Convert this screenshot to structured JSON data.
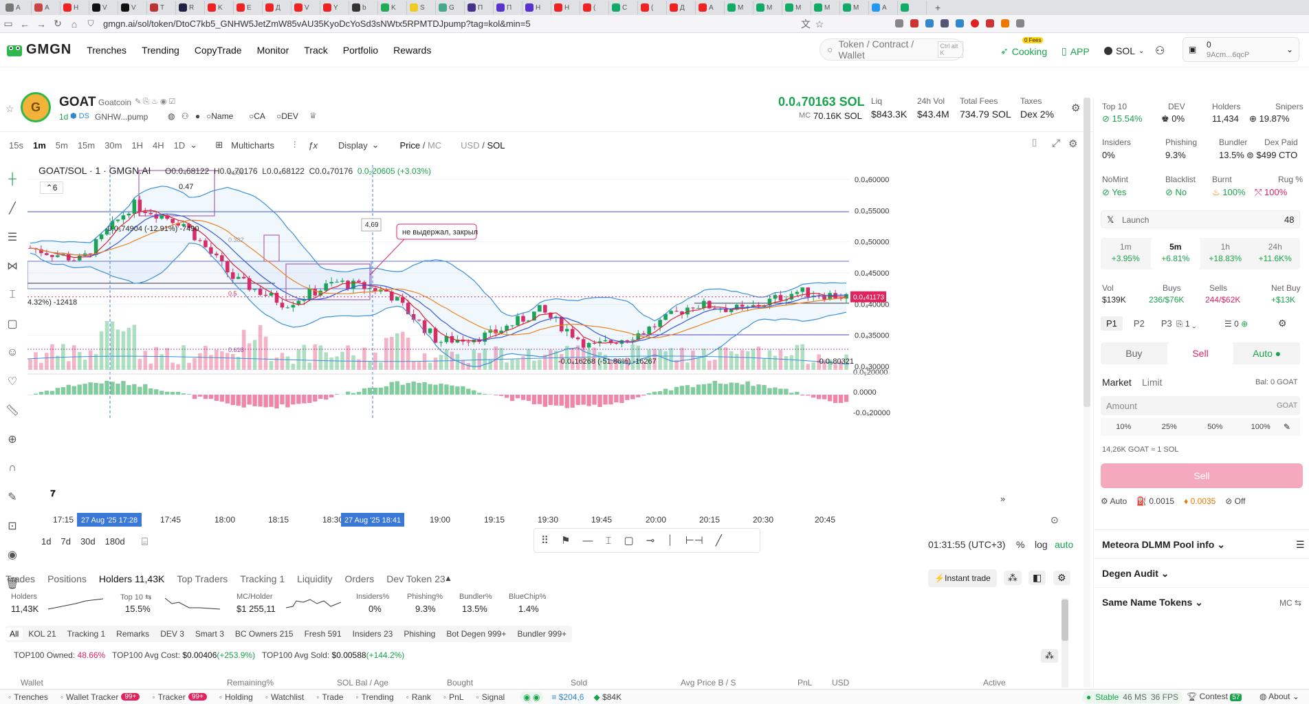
{
  "browser": {
    "tabs": [
      {
        "label": "A",
        "color": "#777"
      },
      {
        "label": "A",
        "color": "#c44"
      },
      {
        "label": "H",
        "color": "#e22"
      },
      {
        "label": "V",
        "color": "#111"
      },
      {
        "label": "V",
        "color": "#111"
      },
      {
        "label": "T",
        "color": "#b33"
      },
      {
        "label": "R",
        "color": "#224"
      },
      {
        "label": "K",
        "color": "#e22"
      },
      {
        "label": "E",
        "color": "#e22"
      },
      {
        "label": "Д",
        "color": "#e22"
      },
      {
        "label": "V",
        "color": "#e22"
      },
      {
        "label": "Y",
        "color": "#e22"
      },
      {
        "label": "b",
        "color": "#333"
      },
      {
        "label": "K",
        "color": "#2a5"
      },
      {
        "label": "S",
        "color": "#ec2"
      },
      {
        "label": "G",
        "color": "#4a8"
      },
      {
        "label": "П",
        "color": "#438"
      },
      {
        "label": "П",
        "color": "#53c"
      },
      {
        "label": "H",
        "color": "#53c"
      },
      {
        "label": "H",
        "color": "#e22"
      },
      {
        "label": "(",
        "color": "#e22"
      },
      {
        "label": "C",
        "color": "#1a6"
      },
      {
        "label": "(",
        "color": "#e22"
      },
      {
        "label": "Д",
        "color": "#e22"
      },
      {
        "label": "A",
        "color": "#e22"
      },
      {
        "label": "M",
        "color": "#1a6"
      },
      {
        "label": "M",
        "color": "#1a6"
      },
      {
        "label": "M",
        "color": "#1a6"
      },
      {
        "label": "M",
        "color": "#1a6"
      },
      {
        "label": "M",
        "color": "#1a6"
      },
      {
        "label": "A",
        "color": "#29e"
      },
      {
        "label": "",
        "color": "#1a6"
      }
    ],
    "url": "gmgn.ai/sol/token/DtoC7kb5_GNHW5JetZmW85vAU35KyoDcYoSd3sNWtx5RPMTDJpump?tag=kol&min=5"
  },
  "nav": {
    "logo": "GMGN",
    "links": [
      "Trenches",
      "Trending",
      "CopyTrade",
      "Monitor",
      "Track",
      "Portfolio",
      "Rewards"
    ],
    "search_placeholder": "Token / Contract / Wallet",
    "search_shortcut": "Ctrl alt K",
    "cooking": "Cooking",
    "cooking_badge": "0 Fees",
    "app": "APP",
    "chain": "SOL",
    "wallet_balance": "0",
    "wallet_addr": "9Acm...6qcP"
  },
  "token": {
    "symbol": "GOAT",
    "name": "Goatcoin",
    "age": "1d",
    "contract": "GNHW...pump",
    "links": [
      "Name",
      "CA",
      "DEV"
    ],
    "price": "0.0₄70163 SOL",
    "mc_label": "MC",
    "mc": "70.16K SOL",
    "liq_label": "Liq",
    "liq": "$843.3K",
    "vol_label": "24h Vol",
    "vol": "$43.4M",
    "fees_label": "Total Fees",
    "fees": "734.79 SOL",
    "taxes_label": "Taxes",
    "taxes": "Dex 2%"
  },
  "toolbar": {
    "timeframes": [
      "15s",
      "1m",
      "5m",
      "15m",
      "30m",
      "1H",
      "4H",
      "1D"
    ],
    "active_tf": "1m",
    "multicharts": "Multicharts",
    "display": "Display",
    "price_mc_a": "Price",
    "price_mc_b": "MC",
    "usd_sol_a": "USD",
    "usd_sol_b": "SOL"
  },
  "chart": {
    "title": "GOAT/SOL · 1 · GMGN.AI",
    "ohlc": {
      "o": "O0.0₄68122",
      "h": "H0.0₄70176",
      "l": "L0.0₄68122",
      "c": "C0.0₄70176",
      "chg": "0.0₂20605 (+3.03%)"
    },
    "indicator_count": "6",
    "annotations": {
      "a1": "-0.0₅74904 (-12.91%) -7490",
      "a2": "4.32%) -12418",
      "a3": "4,69",
      "a4": "не выдержал, закрыл",
      "a5": "-0.0₄16268 (-51.86%) -16267",
      "a6": "-0.0₅80321",
      "a7": "0.47",
      "a8": "0.5",
      "a9": "0.618",
      "a10": "0.236",
      "a11": "0.382"
    },
    "price_labels": [
      "0.0₄60000",
      "0.0₄55000",
      "0.0₄50000",
      "0.0₄45000",
      "0.0₄40000",
      "0.0₄35000",
      "0.0₄30000",
      "0.0₅20000",
      "0.0000",
      "-0.0₅20000"
    ],
    "current_price_label": "0.0₄41173",
    "time_labels": [
      "17:15",
      "17:45",
      "18:00",
      "18:15",
      "18:30",
      "19:00",
      "19:15",
      "19:30",
      "19:45",
      "20:00",
      "20:15",
      "20:30",
      "20:45"
    ],
    "crosshair_time_1": "27 Aug '25   17:28",
    "crosshair_time_2": "27 Aug '25   18:41",
    "ranges": [
      "1d",
      "7d",
      "30d",
      "180d"
    ],
    "clock": "01:31:55 (UTC+3)",
    "scale_pct": "%",
    "scale_log": "log",
    "scale_auto": "auto"
  },
  "chart_data": {
    "type": "candlestick",
    "title": "GOAT/SOL · 1 · GMGN.AI",
    "x": [
      "17:05",
      "17:15",
      "17:28",
      "17:45",
      "18:00",
      "18:15",
      "18:30",
      "18:41",
      "19:00",
      "19:15",
      "19:30",
      "19:45",
      "20:00",
      "20:15",
      "20:30",
      "20:45",
      "20:55"
    ],
    "close_x1e5": [
      4.9,
      4.7,
      5.6,
      5.3,
      4.4,
      4.0,
      4.35,
      4.2,
      3.4,
      3.5,
      3.9,
      3.3,
      3.55,
      4.0,
      3.9,
      4.2,
      4.12
    ],
    "ylim_x1e5": [
      2.9,
      6.1
    ]
  },
  "right": {
    "top10_label": "Top 10",
    "top10": "15.54%",
    "dev_label": "DEV",
    "dev": "0%",
    "holders_label": "Holders",
    "holders": "11,434",
    "snipers_label": "Snipers",
    "snipers": "19.87%",
    "insiders_label": "Insiders",
    "insiders": "0%",
    "phishing_label": "Phishing",
    "phishing": "9.3%",
    "bundler_label": "Bundler",
    "bundler": "13.5%",
    "dexpaid_label": "Dex Paid",
    "dexpaid": "$499 CTO",
    "nomint_label": "NoMint",
    "nomint": "Yes",
    "blacklist_label": "Blacklist",
    "blacklist": "No",
    "burnt_label": "Burnt",
    "burnt": "100%",
    "rug_label": "Rug %",
    "rug": "100%",
    "launch_label": "Launch",
    "launch": "48",
    "periods": [
      {
        "p": "1m",
        "v": "+3.95%"
      },
      {
        "p": "5m",
        "v": "+6.81%"
      },
      {
        "p": "1h",
        "v": "+18.83%"
      },
      {
        "p": "24h",
        "v": "+11.6K%"
      }
    ],
    "vol_label": "Vol",
    "vol": "$139K",
    "buys_label": "Buys",
    "buys": "236/$76K",
    "sells_label": "Sells",
    "sells": "244/$62K",
    "netbuy_label": "Net Buy",
    "netbuy": "+$13K",
    "presets": [
      "P1",
      "P2",
      "P3"
    ],
    "preset_count": "1",
    "pos_count": "0",
    "buy": "Buy",
    "sell": "Sell",
    "auto": "Auto",
    "market": "Market",
    "limit": "Limit",
    "bal": "Bal: 0 GOAT",
    "amount_placeholder": "Amount",
    "amount_unit": "GOAT",
    "pcts": [
      "10%",
      "25%",
      "50%",
      "100%"
    ],
    "rate": "14,26K GOAT ≈ 1 SOL",
    "sell_btn": "Sell",
    "opt_auto": "Auto",
    "opt_fee": "0.0015",
    "opt_tip": "0.0035",
    "opt_off": "Off",
    "meteora": "Meteora DLMM Pool info",
    "degen": "Degen Audit",
    "samename": "Same Name Tokens",
    "mc": "MC"
  },
  "bottom": {
    "tabs": [
      "Trades",
      "Positions",
      "Holders 11,43K",
      "Top Traders",
      "Tracking 1",
      "Liquidity",
      "Orders",
      "Dev Token 23"
    ],
    "active": "Holders 11,43K",
    "instant": "Instant trade",
    "stats": [
      {
        "l": "Holders",
        "v": "11,43K"
      },
      {
        "l": "Top 10",
        "v": "15.5%"
      },
      {
        "l": "MC/Holder",
        "v": "$1 255,11"
      },
      {
        "l": "Insiders%",
        "v": "0%"
      },
      {
        "l": "Phishing%",
        "v": "9.3%"
      },
      {
        "l": "Bundler%",
        "v": "13.5%"
      },
      {
        "l": "BlueChip%",
        "v": "1.4%"
      }
    ],
    "filters": [
      "All",
      "KOL 21",
      "Tracking 1",
      "Remarks",
      "DEV 3",
      "Smart 3",
      "BC Owners 215",
      "Fresh 591",
      "Insiders 23",
      "Phishing",
      "Bot Degen 999+",
      "Bundler 999+"
    ],
    "owned_l": "TOP100 Owned:",
    "owned_v": "48.66%",
    "avgcost_l": "TOP100 Avg Cost:",
    "avgcost_v": "$0.00406",
    "avgcost_p": "(+253.9%)",
    "avgsold_l": "TOP100 Avg Sold:",
    "avgsold_v": "$0.00588",
    "avgsold_p": "(+144.2%)",
    "cols": [
      "Wallet",
      "Remaining%",
      "SOL Bal / Age",
      "Bought",
      "Sold",
      "Avg Price B / S",
      "PnL",
      "USD",
      "Active"
    ]
  },
  "footer": {
    "items": [
      "Trenches",
      "Wallet Tracker",
      "Tracker",
      "Holding",
      "Watchlist",
      "Trade",
      "Trending",
      "Rank",
      "PnL",
      "Signal"
    ],
    "wt_badge": "99+",
    "tr_badge": "99+",
    "sol_price": "$204,6",
    "other": "$84K",
    "status": "Stable",
    "ms": "46 MS",
    "fps": "36 FPS",
    "contest": "Contest",
    "contest_n": "57",
    "about": "About"
  }
}
